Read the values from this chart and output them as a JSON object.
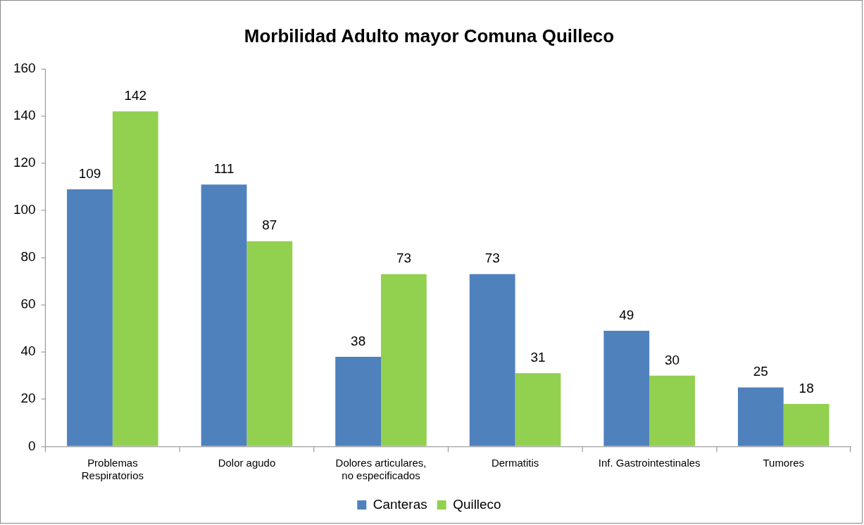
{
  "chart_data": {
    "type": "bar",
    "title": "Morbilidad Adulto mayor Comuna Quilleco",
    "categories": [
      "Problemas Respiratorios",
      "Dolor agudo",
      "Dolores articulares, no especificados",
      "Dermatitis",
      "Inf. Gastrointestinales",
      "Tumores"
    ],
    "series": [
      {
        "name": "Canteras",
        "color": "#4f81bd",
        "values": [
          109,
          111,
          38,
          73,
          49,
          25
        ]
      },
      {
        "name": "Quilleco",
        "color": "#92d050",
        "values": [
          142,
          87,
          73,
          31,
          30,
          18
        ]
      }
    ],
    "ylim": [
      0,
      160
    ],
    "yticks": [
      0,
      20,
      40,
      60,
      80,
      100,
      120,
      140,
      160
    ],
    "grid": false,
    "legend": "bottom",
    "data_labels": true
  }
}
